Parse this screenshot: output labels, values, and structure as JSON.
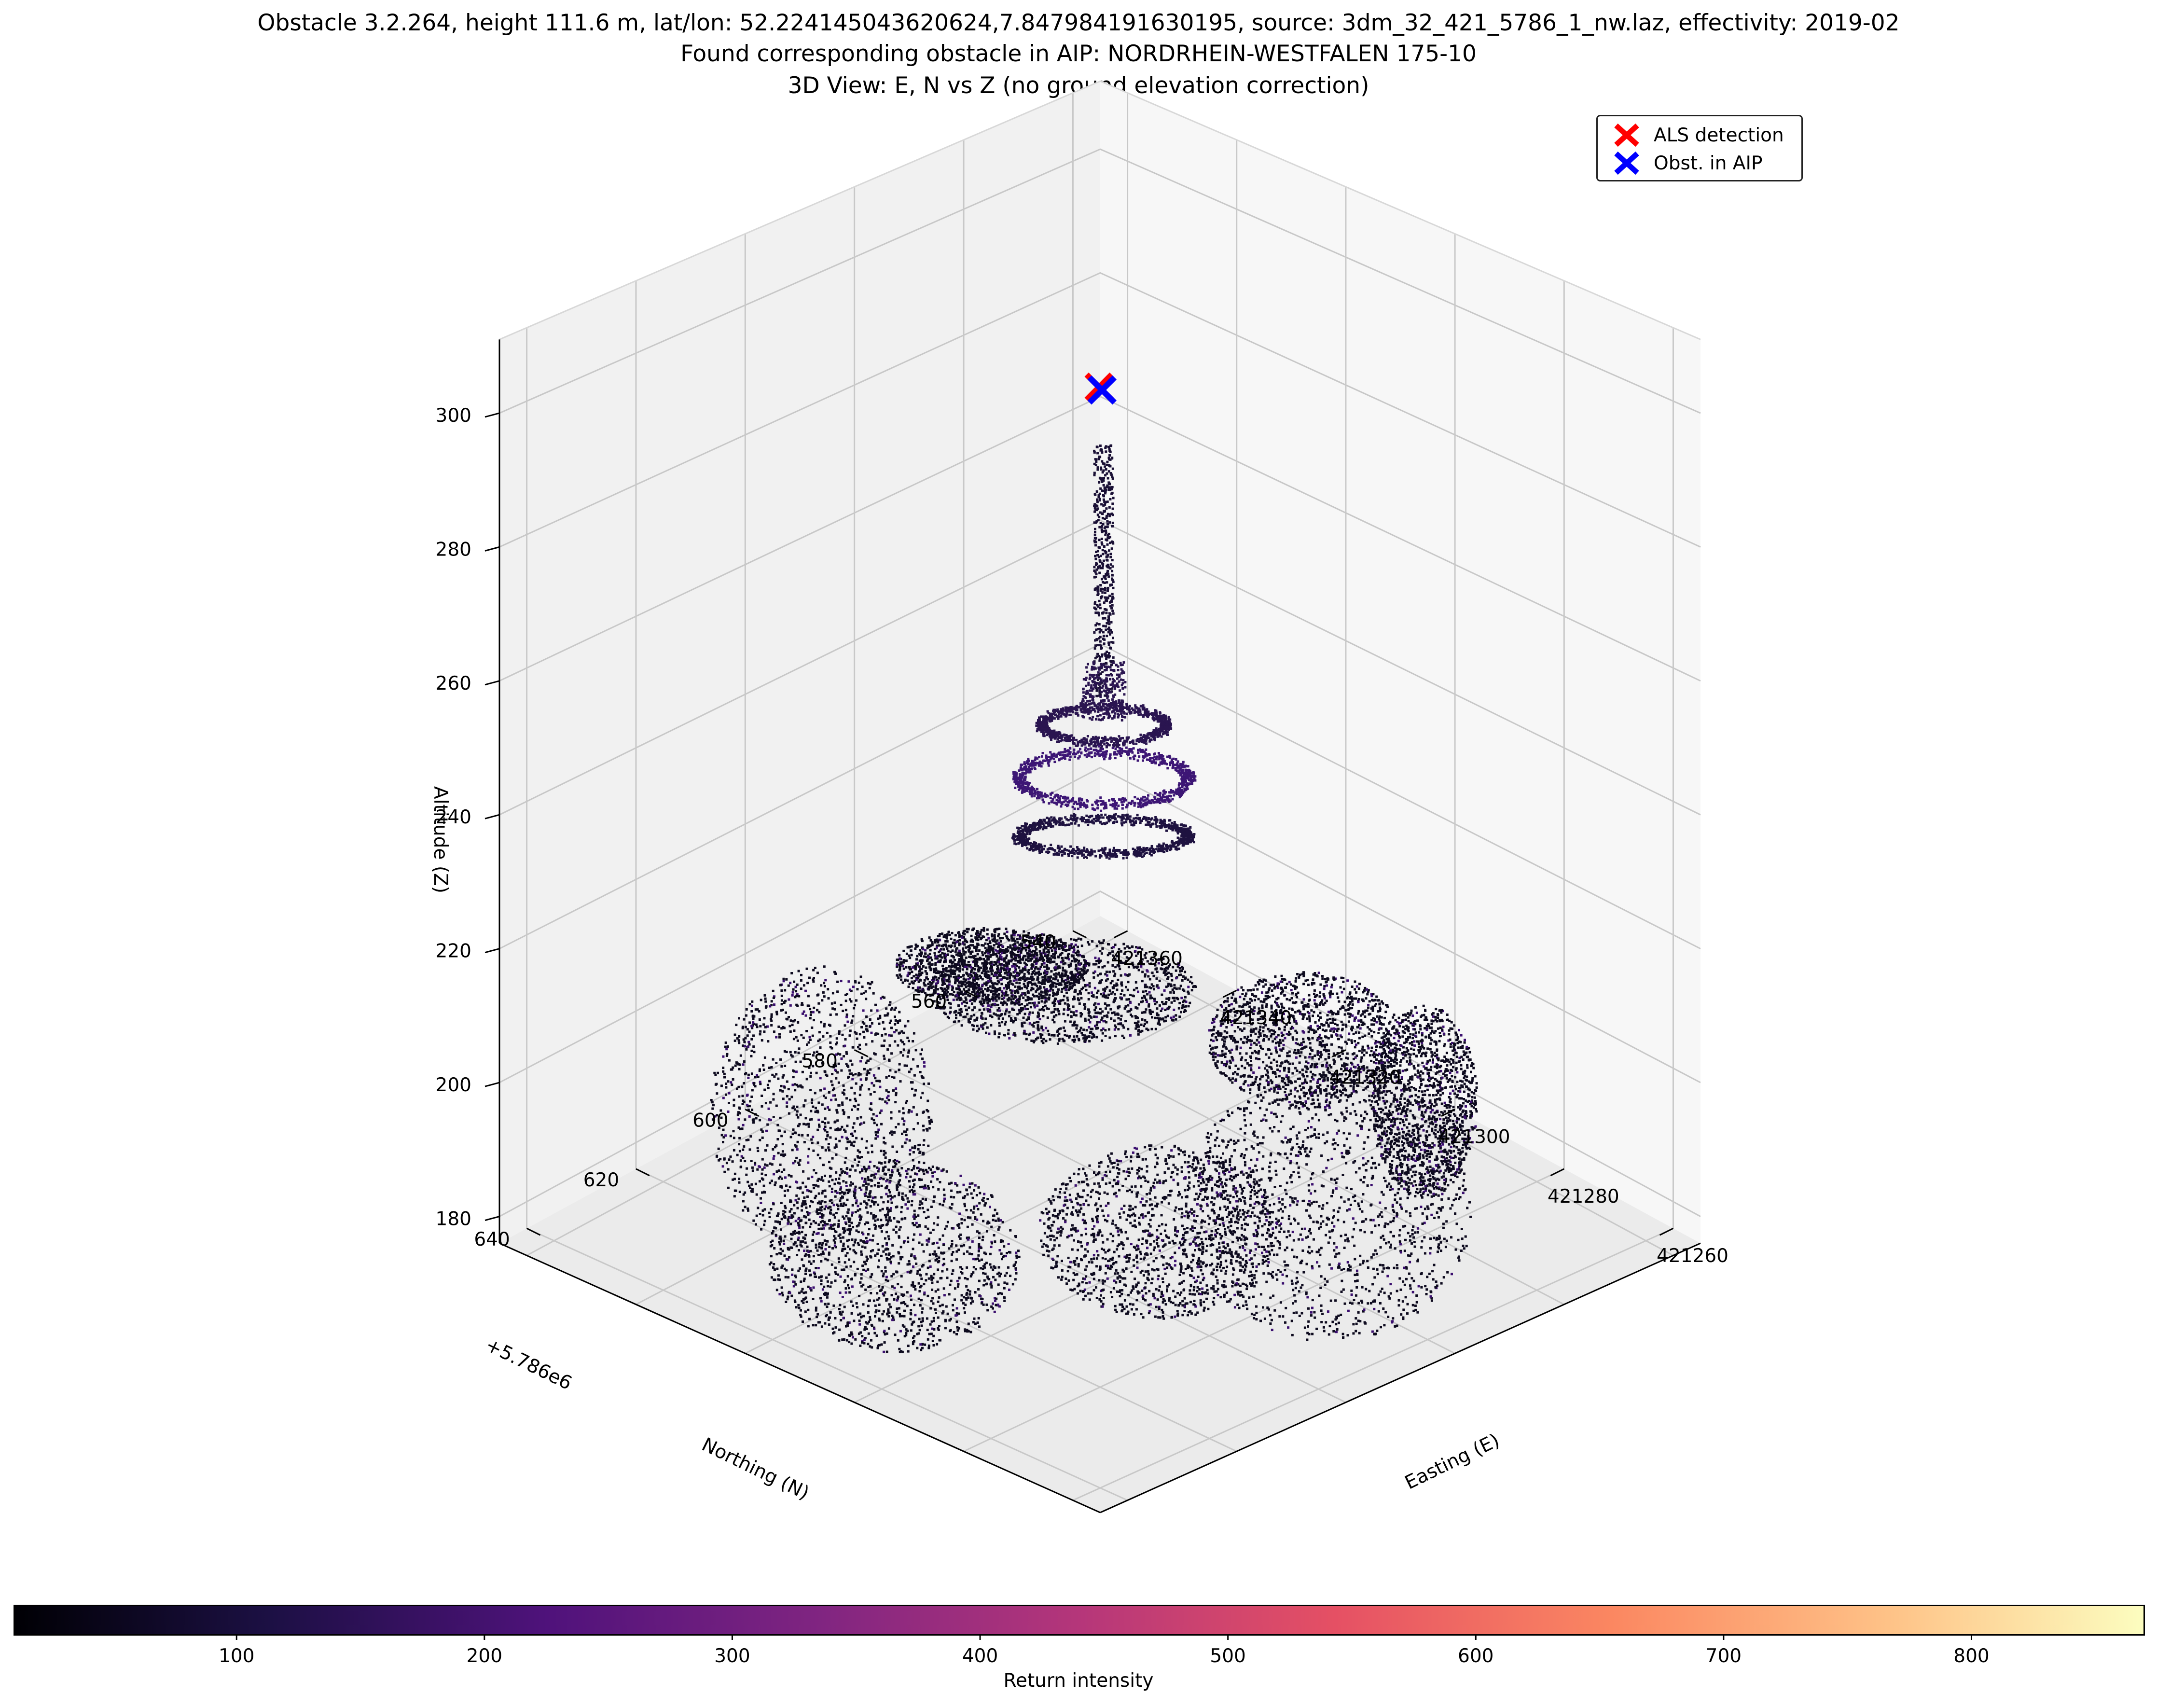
{
  "chart_data": {
    "type": "scatter",
    "view": "3d",
    "title_lines": [
      "Obstacle 3.2.264, height 111.6 m, lat/lon: 52.224145043620624,7.847984191630195, source: 3dm_32_421_5786_1_nw.laz, effectivity: 2019-02",
      "Found corresponding obstacle in AIP: NORDRHEIN-WESTFALEN 175-10",
      "3D View: E, N vs Z (no ground elevation correction)"
    ],
    "xlabel": "Easting (E)",
    "ylabel": "Northing (N)",
    "zlabel": "Altitude (Z)",
    "y_offset_text": "+5.786e6",
    "x_ticks": [
      "421260",
      "421280",
      "421300",
      "421320",
      "421340",
      "421360"
    ],
    "y_ticks": [
      "540",
      "560",
      "580",
      "600",
      "620",
      "640"
    ],
    "z_ticks": [
      "180",
      "200",
      "220",
      "240",
      "260",
      "280",
      "300"
    ],
    "xlim": [
      421255,
      421365
    ],
    "ylim": [
      535,
      645
    ],
    "zlim": [
      176,
      311
    ],
    "series": [
      {
        "name": "ALS detection",
        "marker": "x",
        "color": "#ff0000",
        "points": [
          [
            421310,
            590,
            302
          ]
        ]
      },
      {
        "name": "Obst. in AIP",
        "marker": "x",
        "color": "#0000ff",
        "points": [
          [
            421310,
            590,
            302
          ]
        ]
      }
    ],
    "legend_loc": "top-right",
    "colorbar": {
      "label": "Return intensity",
      "colormap": "magma",
      "ticks": [
        "100",
        "200",
        "300",
        "400",
        "500",
        "600",
        "700",
        "800"
      ],
      "range": [
        10,
        870
      ]
    },
    "grid": true
  }
}
